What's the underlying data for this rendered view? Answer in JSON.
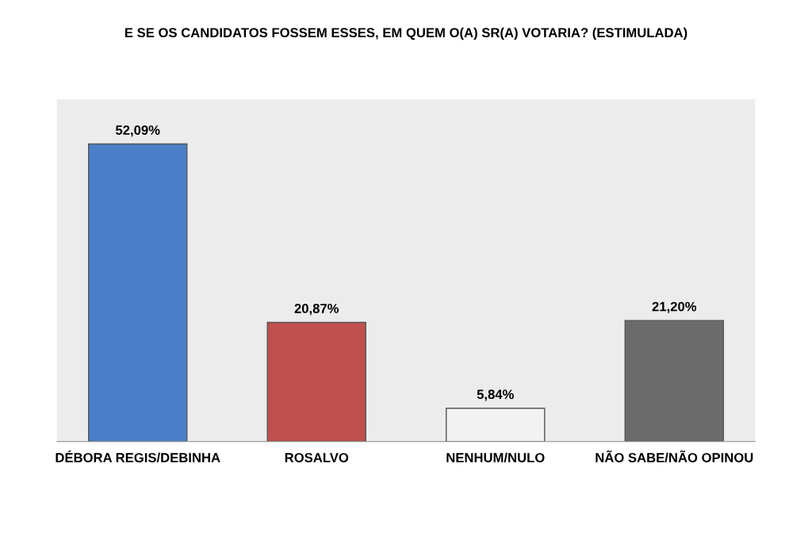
{
  "chart_data": {
    "type": "bar",
    "title": "E SE OS CANDIDATOS FOSSEM ESSES, EM QUEM O(A) SR(A) VOTARIA? (ESTIMULADA)",
    "categories": [
      "DÉBORA REGIS/DEBINHA",
      "ROSALVO",
      "NENHUM/NULO",
      "NÃO SABE/NÃO OPINOU"
    ],
    "values": [
      52.09,
      20.87,
      5.84,
      21.2
    ],
    "colors": [
      "#4a7fc8",
      "#c0504d",
      "#f2f2f2",
      "#6b6b6b"
    ],
    "value_labels": [
      "52,09%",
      "20,87%",
      "5,84%",
      "21,20%"
    ],
    "legend": false
  }
}
